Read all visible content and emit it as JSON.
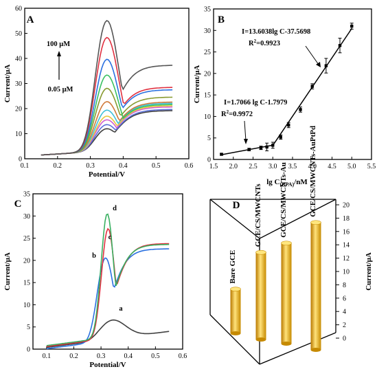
{
  "chart_data": [
    {
      "panel": "A",
      "type": "line",
      "xlabel": "Potential/V",
      "ylabel": "Current/μA",
      "xlim": [
        0.1,
        0.6
      ],
      "ylim": [
        0,
        60
      ],
      "xticks": [
        0.1,
        0.2,
        0.3,
        0.4,
        0.5,
        0.6
      ],
      "yticks": [
        0,
        10,
        20,
        30,
        40,
        50,
        60
      ],
      "annotations": [
        "100 μM",
        "0.05 μM"
      ],
      "series": [
        {
          "color": "#404040",
          "peak": 12.3,
          "end": 19.5
        },
        {
          "color": "#5a6fd8",
          "peak": 14.0,
          "end": 20.0
        },
        {
          "color": "#d060d0",
          "peak": 16.0,
          "end": 21.0
        },
        {
          "color": "#e8c840",
          "peak": 17.5,
          "end": 21.5
        },
        {
          "color": "#40c0d8",
          "peak": 20.0,
          "end": 22.5
        },
        {
          "color": "#d07a3a",
          "peak": 23.5,
          "end": 23.0
        },
        {
          "color": "#889a30",
          "peak": 29.0,
          "end": 25.0
        },
        {
          "color": "#38c060",
          "peak": 34.5,
          "end": 22.0
        },
        {
          "color": "#2a70e0",
          "peak": 41.0,
          "end": 28.0
        },
        {
          "color": "#e03040",
          "peak": 50.0,
          "end": 29.0
        },
        {
          "color": "#555555",
          "peak": 57.0,
          "end": 38.0
        }
      ]
    },
    {
      "panel": "B",
      "type": "scatter",
      "xlabel": "lg C",
      "xlabel_sub": "(BPA)",
      "xlabel_unit": "/nM",
      "ylabel": "Current/μA",
      "xlim": [
        1.5,
        5.5
      ],
      "ylim": [
        0,
        35
      ],
      "xticks": [
        1.5,
        2.0,
        2.5,
        3.0,
        3.5,
        4.0,
        4.5,
        5.0,
        5.5
      ],
      "yticks": [
        0,
        5,
        10,
        15,
        20,
        25,
        30,
        35
      ],
      "x": [
        1.7,
        2.4,
        2.7,
        2.85,
        3.0,
        3.2,
        3.4,
        3.7,
        4.0,
        4.35,
        4.7,
        5.0
      ],
      "y": [
        1.2,
        2.3,
        2.7,
        2.9,
        3.3,
        5.2,
        8.0,
        11.6,
        17.0,
        21.8,
        26.5,
        31.0
      ],
      "err": [
        0.2,
        0.3,
        0.4,
        0.9,
        0.7,
        0.5,
        0.6,
        0.6,
        0.6,
        1.7,
        1.7,
        0.7
      ],
      "fit_low": {
        "eq": "I=1.7066 lg C-1.7979",
        "r2_label": "R",
        "r2_exp": "2",
        "r2_val": "=0.9972",
        "x": [
          1.7,
          3.0
        ]
      },
      "fit_high": {
        "eq": "I=13.6038lg C-37.5698",
        "r2_label": "R",
        "r2_exp": "2",
        "r2_val": "=0.9923",
        "x": [
          3.0,
          5.0
        ]
      }
    },
    {
      "panel": "C",
      "type": "line",
      "xlabel": "Potential/V",
      "ylabel": "Current/μA",
      "xlim": [
        0.05,
        0.6
      ],
      "ylim": [
        0,
        35
      ],
      "xticks": [
        0.1,
        0.2,
        0.3,
        0.4,
        0.5,
        0.6
      ],
      "yticks": [
        0,
        5,
        10,
        15,
        20,
        25,
        30,
        35
      ],
      "series": [
        {
          "name": "a",
          "color": "#404040",
          "peak": 6.6,
          "end": 3.2
        },
        {
          "name": "b",
          "color": "#2a70e0",
          "peak": 21.2,
          "end": 23.0
        },
        {
          "name": "c",
          "color": "#e03040",
          "peak": 28.0,
          "end": 24.2
        },
        {
          "name": "d",
          "color": "#38b060",
          "peak": 31.5,
          "end": 24.0
        }
      ]
    },
    {
      "panel": "D",
      "type": "bar",
      "ylabel": "Current/μA",
      "ylim": [
        0,
        20
      ],
      "yticks": [
        0,
        2,
        4,
        6,
        8,
        10,
        12,
        14,
        16,
        18,
        20
      ],
      "categories": [
        "Bare GCE",
        "GCE/CS/MWCNTs",
        "GCE/CS/MWCNTs-Au",
        "GCE/CS/MWCNTs-AuPtPd"
      ],
      "values": [
        6.6,
        13.0,
        15.0,
        19.0
      ]
    }
  ]
}
